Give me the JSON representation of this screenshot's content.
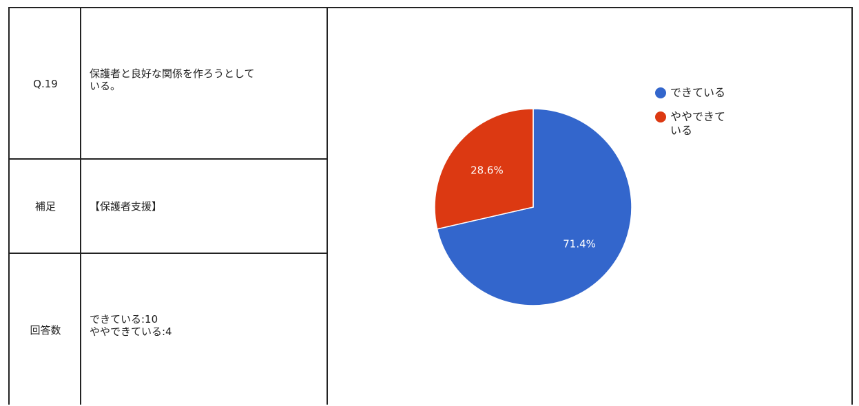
{
  "table": {
    "row1": {
      "label": "Q.19",
      "text": "保護者と良好な関係を作ろうとして\nいる。"
    },
    "row2": {
      "label": "補足",
      "text": "【保護者支援】"
    },
    "row3": {
      "label": "回答数",
      "text": "できている:10\nややできている:4"
    }
  },
  "legend": [
    {
      "label": "できている",
      "color": "#3366cc"
    },
    {
      "label": "ややできて\nいる",
      "color": "#dc3912"
    }
  ],
  "chart_data": {
    "type": "pie",
    "categories": [
      "できている",
      "ややできている"
    ],
    "values": [
      10,
      4
    ],
    "percent_labels": [
      "71.4%",
      "28.6%"
    ],
    "colors": [
      "#3366cc",
      "#dc3912"
    ],
    "legend_position": "top-right"
  }
}
